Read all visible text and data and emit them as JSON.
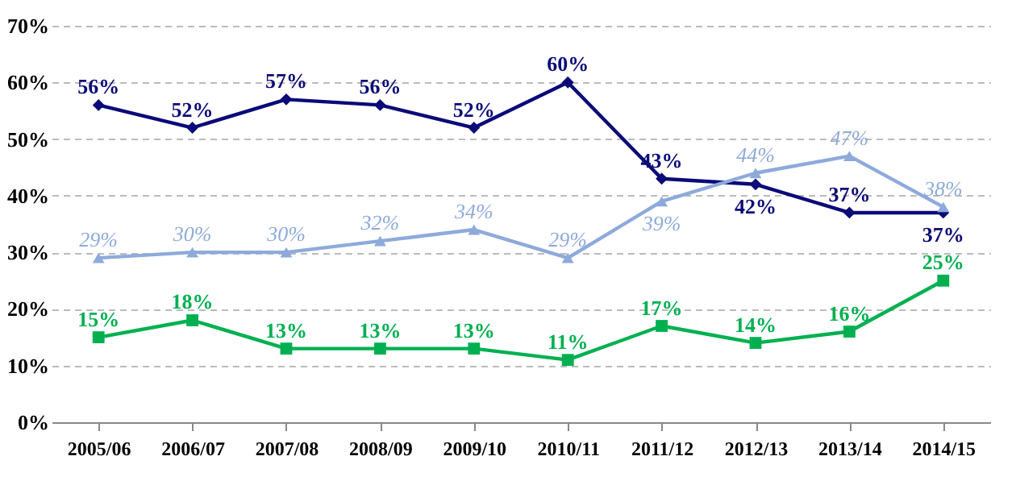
{
  "chart_data": {
    "type": "line",
    "categories": [
      "2005/06",
      "2006/07",
      "2007/08",
      "2008/09",
      "2009/10",
      "2010/11",
      "2011/12",
      "2012/13",
      "2013/14",
      "2014/15"
    ],
    "series": [
      {
        "color": "#0a0a78",
        "marker": "diamond",
        "values": [
          56,
          52,
          57,
          56,
          52,
          60,
          43,
          42,
          37,
          37
        ],
        "value_labels": [
          "56%",
          "52%",
          "57%",
          "56%",
          "52%",
          "60%",
          "43%",
          "42%",
          "37%",
          "37%"
        ]
      },
      {
        "color": "#8eaadb",
        "marker": "triangle",
        "values": [
          29,
          30,
          30,
          32,
          34,
          29,
          39,
          44,
          47,
          38
        ],
        "value_labels": [
          "29%",
          "30%",
          "30%",
          "32%",
          "34%",
          "29%",
          "39%",
          "44%",
          "47%",
          "38%"
        ]
      },
      {
        "color": "#00b050",
        "marker": "square",
        "values": [
          15,
          18,
          13,
          13,
          13,
          11,
          17,
          14,
          16,
          25
        ],
        "value_labels": [
          "15%",
          "18%",
          "13%",
          "13%",
          "13%",
          "11%",
          "17%",
          "14%",
          "16%",
          "25%"
        ]
      }
    ],
    "ylim": [
      0,
      70
    ],
    "yticks": [
      {
        "value": 0,
        "label": "0%"
      },
      {
        "value": 10,
        "label": "10%"
      },
      {
        "value": 20,
        "label": "20%"
      },
      {
        "value": 30,
        "label": "30%"
      },
      {
        "value": 40,
        "label": "40%"
      },
      {
        "value": 50,
        "label": "50%"
      },
      {
        "value": 60,
        "label": "60%"
      },
      {
        "value": 70,
        "label": "70%"
      }
    ],
    "grid": "y",
    "legend": false
  }
}
